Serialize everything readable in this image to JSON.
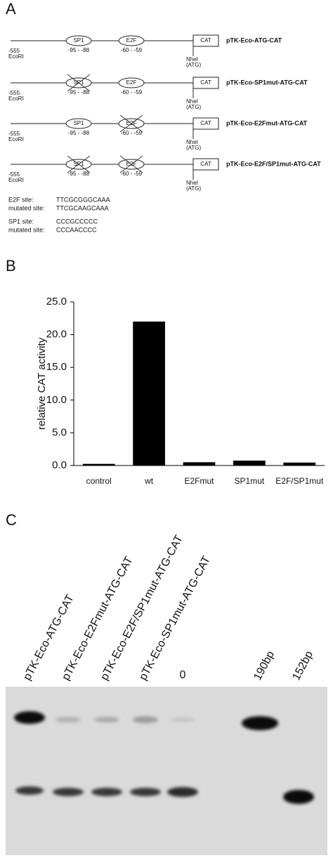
{
  "panel_a": {
    "label": "A",
    "promoter_start": "-555",
    "ecori": "EcoRI",
    "sp1": "SP1",
    "sp1_pos": "-95 - -88",
    "e2f": "E2F",
    "e2f_pos": "-60 - -59",
    "cat": "CAT",
    "nhei": "NheI",
    "atg": "(ATG)",
    "constructs": [
      {
        "name": "pTK-Eco-ATG-CAT",
        "sp1_mutated": false,
        "e2f_mutated": false
      },
      {
        "name": "pTK-Eco-SP1mut-ATG-CAT",
        "sp1_mutated": true,
        "e2f_mutated": false
      },
      {
        "name": "pTK-Eco-E2Fmut-ATG-CAT",
        "sp1_mutated": false,
        "e2f_mutated": true
      },
      {
        "name": "pTK-Eco-E2F/SP1mut-ATG-CAT",
        "sp1_mutated": true,
        "e2f_mutated": true
      }
    ],
    "sites": [
      {
        "label": "E2F site:",
        "sequence": "TTCGCGGGCAAA"
      },
      {
        "label": "mutated site:",
        "sequence": "TTCGCAAGCAAA"
      },
      {
        "label": "SP1 site:",
        "sequence": "CCCGCCCCC"
      },
      {
        "label": "mutated site:",
        "sequence": "CCCAACCCC"
      }
    ]
  },
  "panel_b": {
    "label": "B"
  },
  "chart_data": {
    "type": "bar",
    "y_label": "relative CAT activity",
    "categories": [
      "control",
      "wt",
      "E2Fmut",
      "SP1mut",
      "E2F/SP1mut"
    ],
    "values": [
      0.25,
      22.0,
      0.5,
      0.75,
      0.45
    ],
    "color": "#000000",
    "ylim": [
      0,
      25
    ],
    "yticks": [
      {
        "value": 0,
        "label": "0.0"
      },
      {
        "value": 5,
        "label": "5.0"
      },
      {
        "value": 10,
        "label": "10.0"
      },
      {
        "value": 15,
        "label": "15.0"
      },
      {
        "value": 20,
        "label": "20.0"
      },
      {
        "value": 25,
        "label": "25.0"
      }
    ]
  },
  "panel_c": {
    "label": "C",
    "lanes": [
      "pTK-Eco-ATG-CAT",
      "pTK-Eco-E2Fmut-ATG-CAT",
      "pTK-Eco-E2F/SP1mut-ATG-CAT",
      "pTK-Eco-SP1mut-ATG-CAT",
      "0",
      "190bp",
      "152bp"
    ]
  }
}
